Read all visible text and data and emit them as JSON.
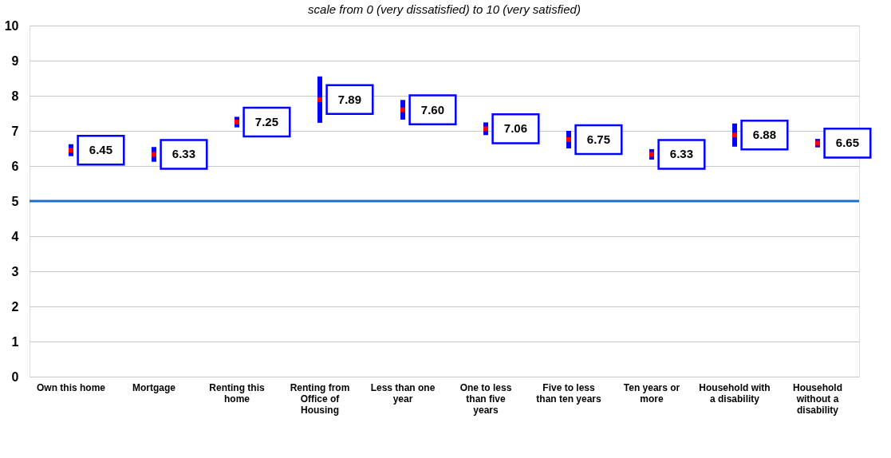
{
  "chart_data": {
    "type": "scatter",
    "subtitle": "scale from 0 (very dissatisfied) to 10 (very satisfied)",
    "categories": [
      "Own this home",
      "Mortgage",
      "Renting this home",
      "Renting from Office of Housing",
      "Less than one year",
      "One to less than five years",
      "Five to less than ten years",
      "Ten years or more",
      "Household with a disability",
      "Household without a disability"
    ],
    "series": [
      {
        "color": "#ff0000",
        "values": [
          6.45,
          6.33,
          7.25,
          7.89,
          7.6,
          7.06,
          6.75,
          6.33,
          6.88,
          6.65
        ],
        "errors": [
          0.17,
          0.21,
          0.15,
          0.66,
          0.28,
          0.18,
          0.25,
          0.15,
          0.33,
          0.12
        ],
        "value_labels": [
          "6.45",
          "6.33",
          "7.25",
          "7.89",
          "7.60",
          "7.06",
          "6.75",
          "6.33",
          "6.88",
          "6.65"
        ]
      }
    ],
    "ylim": [
      0,
      10
    ],
    "yticks": [
      0,
      1,
      2,
      3,
      4,
      5,
      6,
      7,
      8,
      9,
      10
    ],
    "grid": "y",
    "marker": "square",
    "ref_lines": [
      {
        "axis": "y",
        "value": 5,
        "color": "#1f6fc8"
      }
    ]
  }
}
